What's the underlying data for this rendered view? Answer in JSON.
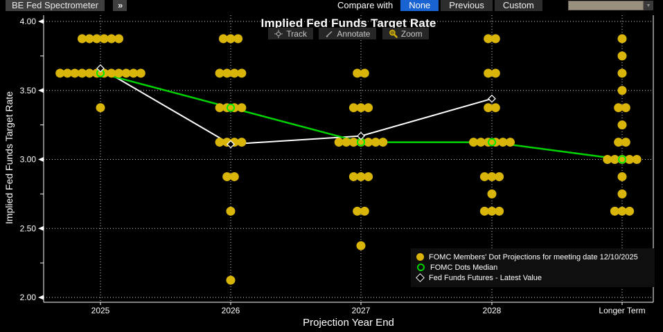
{
  "header": {
    "app_title": "BE Fed Spectrometer",
    "expand_icon": "»",
    "compare_label": "Compare with",
    "compare_options": [
      {
        "label": "None",
        "active": true
      },
      {
        "label": "Previous",
        "active": false
      },
      {
        "label": "Custom",
        "active": false
      }
    ],
    "dropdown_value": ""
  },
  "toolbar": {
    "track_label": "Track",
    "annotate_label": "Annotate",
    "zoom_label": "Zoom"
  },
  "colors": {
    "dot_yellow": "#d8b508",
    "median_green": "#00d300",
    "median_ring_green": "#00e800",
    "futures_white": "#ffffff",
    "active_blue": "#1a63d2",
    "dropdown_tan": "#9a9080",
    "background": "#000000"
  },
  "chart_data": {
    "type": "scatter",
    "title": "Implied Fed Funds Target Rate",
    "xlabel": "Projection Year End",
    "ylabel": "Implied Fed Funds Target Rate",
    "ylim": [
      2.0,
      4.0
    ],
    "yticks": [
      "4.00",
      "3.50",
      "3.00",
      "2.50",
      "2.00"
    ],
    "ytick_values": [
      4.0,
      3.5,
      3.0,
      2.5,
      2.0
    ],
    "yminor_values": [
      3.75,
      3.25,
      2.75,
      2.25
    ],
    "categories": [
      "2025",
      "2026",
      "2027",
      "2028",
      "Longer Term"
    ],
    "grid": true,
    "legend_position": "bottom-right",
    "series": [
      {
        "name": "FOMC Members' Dot Projections for meeting date 12/10/2025",
        "marker": "filled-circle",
        "color": "#d8b508",
        "dots": [
          [
            [
              3.875,
              6
            ],
            [
              3.625,
              12
            ],
            [
              3.375,
              1
            ]
          ],
          [
            [
              3.875,
              3
            ],
            [
              3.625,
              4
            ],
            [
              3.375,
              4
            ],
            [
              3.125,
              4
            ],
            [
              2.875,
              2
            ],
            [
              2.625,
              1
            ],
            [
              2.125,
              1
            ]
          ],
          [
            [
              3.625,
              2
            ],
            [
              3.375,
              3
            ],
            [
              3.125,
              7
            ],
            [
              2.875,
              3
            ],
            [
              2.625,
              2
            ],
            [
              2.375,
              1
            ]
          ],
          [
            [
              3.875,
              2
            ],
            [
              3.625,
              2
            ],
            [
              3.375,
              2
            ],
            [
              3.125,
              6
            ],
            [
              2.875,
              3
            ],
            [
              2.75,
              1
            ],
            [
              2.625,
              3
            ]
          ],
          [
            [
              3.875,
              1
            ],
            [
              3.75,
              1
            ],
            [
              3.625,
              1
            ],
            [
              3.5,
              1
            ],
            [
              3.375,
              2
            ],
            [
              3.25,
              1
            ],
            [
              3.125,
              2
            ],
            [
              3.0,
              5
            ],
            [
              2.875,
              1
            ],
            [
              2.75,
              1
            ],
            [
              2.625,
              3
            ]
          ]
        ]
      },
      {
        "name": "FOMC Dots Median",
        "marker": "open-circle",
        "color": "#00d300",
        "values": [
          3.625,
          3.375,
          3.125,
          3.125,
          3.0
        ]
      },
      {
        "name": "Fed Funds Futures - Latest Value",
        "marker": "open-diamond",
        "color": "#ffffff",
        "values": [
          3.66,
          3.11,
          3.17,
          3.44,
          null
        ]
      }
    ]
  }
}
